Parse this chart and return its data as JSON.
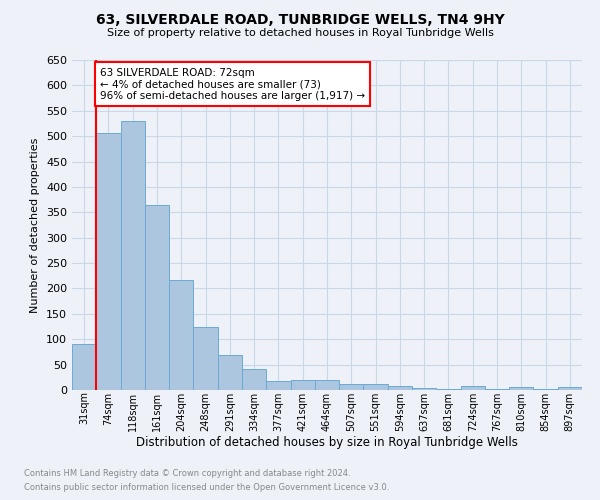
{
  "title": "63, SILVERDALE ROAD, TUNBRIDGE WELLS, TN4 9HY",
  "subtitle": "Size of property relative to detached houses in Royal Tunbridge Wells",
  "xlabel": "Distribution of detached houses by size in Royal Tunbridge Wells",
  "ylabel": "Number of detached properties",
  "footnote1": "Contains HM Land Registry data © Crown copyright and database right 2024.",
  "footnote2": "Contains public sector information licensed under the Open Government Licence v3.0.",
  "categories": [
    "31sqm",
    "74sqm",
    "118sqm",
    "161sqm",
    "204sqm",
    "248sqm",
    "291sqm",
    "334sqm",
    "377sqm",
    "421sqm",
    "464sqm",
    "507sqm",
    "551sqm",
    "594sqm",
    "637sqm",
    "681sqm",
    "724sqm",
    "767sqm",
    "810sqm",
    "854sqm",
    "897sqm"
  ],
  "values": [
    90,
    507,
    530,
    364,
    216,
    125,
    69,
    42,
    18,
    20,
    20,
    11,
    11,
    7,
    3,
    2,
    7,
    2,
    5,
    2,
    6
  ],
  "bar_color": "#adc6e0",
  "bar_edge_color": "#6aaad4",
  "annotation_box_text1": "63 SILVERDALE ROAD: 72sqm",
  "annotation_box_text2": "← 4% of detached houses are smaller (73)",
  "annotation_box_text3": "96% of semi-detached houses are larger (1,917) →",
  "annotation_box_color": "white",
  "annotation_box_edge_color": "red",
  "ylim": [
    0,
    650
  ],
  "yticks": [
    0,
    50,
    100,
    150,
    200,
    250,
    300,
    350,
    400,
    450,
    500,
    550,
    600,
    650
  ],
  "grid_color": "#c8d8e8",
  "background_color": "#eef2f8"
}
